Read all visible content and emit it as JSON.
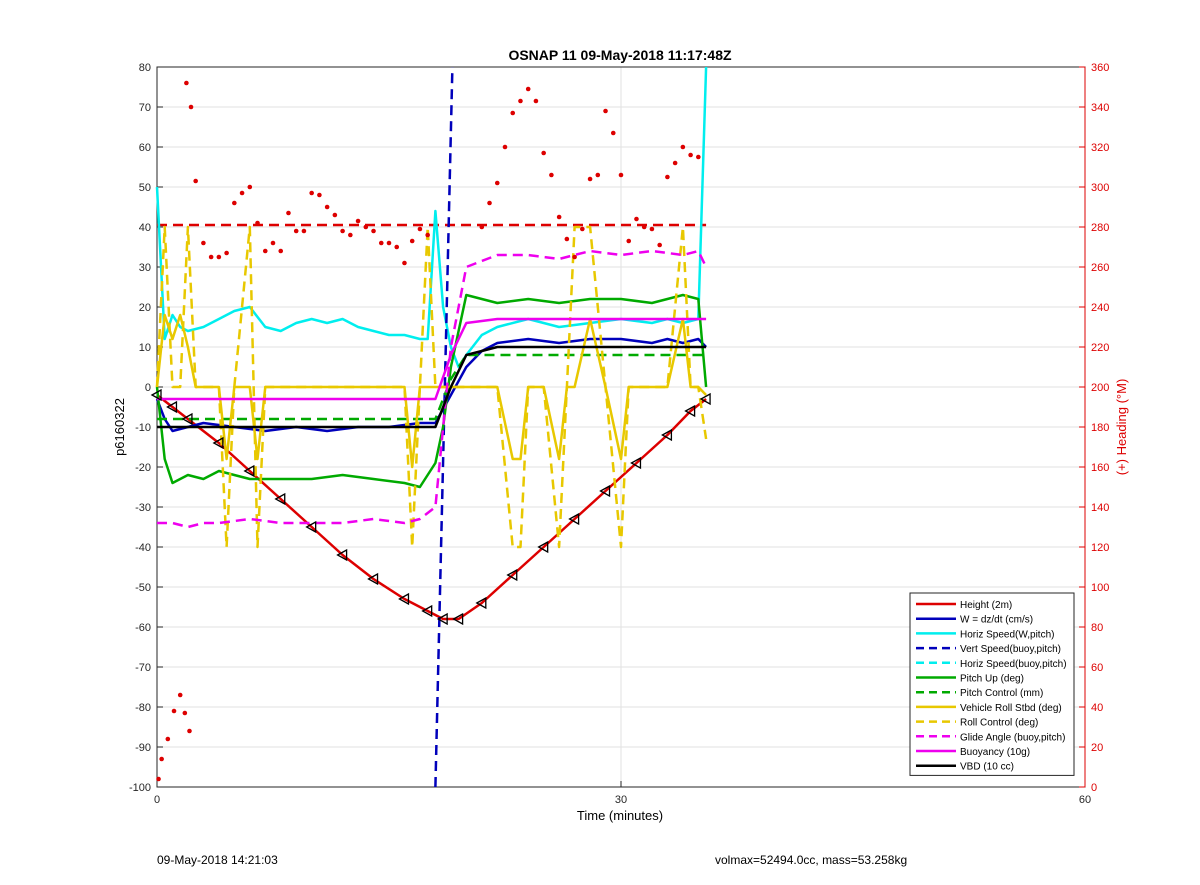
{
  "chart_data": {
    "type": "line",
    "title": "OSNAP 11 09-May-2018 11:17:48Z",
    "xlabel": "Time (minutes)",
    "ylabel": "p6160322",
    "y2label": "(+) Heading (°M)",
    "xlim": [
      0,
      60
    ],
    "ylim": [
      -100,
      80
    ],
    "y2lim": [
      0,
      360
    ],
    "xticks": [
      0,
      30,
      60
    ],
    "yticks": [
      -100,
      -90,
      -80,
      -70,
      -60,
      -50,
      -40,
      -30,
      -20,
      -10,
      0,
      10,
      20,
      30,
      40,
      50,
      60,
      70,
      80
    ],
    "y2ticks": [
      0,
      20,
      40,
      60,
      80,
      100,
      120,
      140,
      160,
      180,
      200,
      220,
      240,
      260,
      280,
      300,
      320,
      340,
      360
    ],
    "grid": true,
    "legend_position": "bottom-right",
    "colors": {
      "height": "#dd0000",
      "w": "#0000bb",
      "horiz": "#00eeee",
      "pitch": "#00aa00",
      "roll": "#e8c800",
      "glide": "#ee00ee",
      "buoyancy": "#ee00ee",
      "vbd": "#000000",
      "heading": "#dd0000"
    },
    "series": [
      {
        "name": "Height (2m)",
        "key": "height",
        "style": "solid",
        "x": [
          0,
          1,
          2,
          4,
          6,
          8,
          10,
          12,
          14,
          16,
          17.5,
          18.5,
          19.5,
          21,
          23,
          25,
          27,
          29,
          31,
          33,
          34.5,
          35.5
        ],
        "y": [
          -2,
          -5,
          -8,
          -14,
          -21,
          -28,
          -35,
          -42,
          -48,
          -53,
          -56,
          -58,
          -58,
          -54,
          -47,
          -40,
          -33,
          -26,
          -19,
          -12,
          -6,
          -3
        ]
      },
      {
        "name": "W = dz/dt (cm/s)",
        "key": "w",
        "style": "solid",
        "x": [
          0,
          0.5,
          1,
          2,
          3,
          5,
          7,
          9,
          11,
          13,
          15,
          17,
          18,
          19,
          20,
          21,
          22,
          24,
          26,
          28,
          30,
          32,
          33,
          34,
          35,
          35.5
        ],
        "y": [
          -3,
          -8,
          -11,
          -10,
          -9,
          -10,
          -11,
          -10,
          -11,
          -10,
          -10,
          -9,
          -9,
          -2,
          5,
          9,
          11,
          12,
          11,
          12,
          12,
          11,
          12,
          11,
          12,
          10
        ]
      },
      {
        "name": "Horiz Speed(W,pitch)",
        "key": "horiz",
        "style": "solid",
        "x": [
          0,
          0.5,
          1,
          1.5,
          2,
          3,
          4,
          5,
          6,
          7,
          8,
          9,
          10,
          11,
          12,
          13,
          14,
          15,
          16,
          17,
          17.5,
          18,
          18.5,
          19,
          19.5,
          20,
          21,
          22,
          24,
          26,
          28,
          30,
          32,
          33,
          34,
          35,
          35.5
        ],
        "y": [
          50,
          12,
          18,
          15,
          14,
          15,
          17,
          19,
          20,
          15,
          14,
          16,
          17,
          16,
          17,
          15,
          14,
          13,
          13,
          12,
          12,
          44,
          20,
          10,
          5,
          8,
          13,
          15,
          17,
          15,
          16,
          17,
          16,
          17,
          16,
          17,
          80
        ]
      },
      {
        "name": "Vert Speed(buoy,pitch)",
        "key": "w",
        "style": "dashed",
        "x": [
          18,
          19.1
        ],
        "y": [
          -100,
          80
        ]
      },
      {
        "name": "Horiz Speed(buoy,pitch)",
        "key": "horiz",
        "style": "dashed",
        "x": [],
        "y": []
      },
      {
        "name": "Pitch Up (deg)",
        "key": "pitch",
        "style": "solid",
        "x": [
          0,
          0.5,
          1,
          2,
          3,
          4,
          5,
          6,
          8,
          10,
          12,
          14,
          16,
          17,
          18,
          18.5,
          19,
          20,
          21,
          22,
          24,
          26,
          28,
          30,
          32,
          34,
          35,
          35.5
        ],
        "y": [
          0,
          -18,
          -24,
          -22,
          -23,
          -21,
          -22,
          -23,
          -23,
          -23,
          -22,
          -23,
          -24,
          -25,
          -19,
          -10,
          5,
          23,
          22,
          21,
          22,
          21,
          22,
          22,
          21,
          23,
          22,
          0
        ]
      },
      {
        "name": "Pitch Control (mm)",
        "key": "pitch",
        "style": "dashed",
        "x": [
          0,
          1,
          4,
          10,
          16,
          18,
          19,
          20,
          22,
          26,
          30,
          34,
          35.5
        ],
        "y": [
          -8,
          -8,
          -8,
          -8,
          -8,
          -8,
          2,
          8,
          8,
          8,
          8,
          8,
          8
        ]
      },
      {
        "name": "Vehicle Roll Stbd (deg)",
        "key": "roll",
        "style": "solid",
        "x": [
          0,
          0.5,
          1,
          1.5,
          2,
          2.5,
          3,
          4,
          4.5,
          5,
          6,
          6.5,
          7,
          8,
          10,
          12,
          14,
          16,
          16.5,
          17,
          17.5,
          18,
          19,
          20,
          22,
          23,
          23.5,
          24,
          25,
          26,
          26.5,
          27,
          28,
          29,
          30,
          30.5,
          31,
          32,
          33,
          34,
          34.5,
          35,
          35.5
        ],
        "y": [
          0,
          18,
          12,
          18,
          10,
          0,
          0,
          0,
          -18,
          0,
          0,
          -18,
          0,
          0,
          0,
          0,
          0,
          0,
          -20,
          0,
          0,
          0,
          0,
          0,
          0,
          -18,
          -18,
          0,
          0,
          -18,
          0,
          0,
          17,
          0,
          -18,
          0,
          0,
          0,
          0,
          17,
          0,
          0,
          -2
        ]
      },
      {
        "name": "Roll Control (deg)",
        "key": "roll",
        "style": "dashed",
        "x": [
          0,
          0.5,
          1,
          1.5,
          2,
          2.5,
          3,
          4,
          4.5,
          5,
          6,
          6.5,
          7,
          8,
          10,
          12,
          14,
          16,
          16.5,
          17,
          17.5,
          18,
          19,
          20,
          22,
          23,
          23.5,
          24,
          25,
          26,
          26.5,
          27,
          28,
          29,
          30,
          30.5,
          31,
          32,
          33,
          34,
          34.5,
          35,
          35.5
        ],
        "y": [
          0,
          40,
          0,
          0,
          40,
          0,
          0,
          0,
          -40,
          0,
          40,
          -40,
          0,
          0,
          0,
          0,
          0,
          0,
          -40,
          0,
          40,
          0,
          0,
          0,
          0,
          -40,
          -40,
          0,
          0,
          -40,
          0,
          40,
          40,
          0,
          -40,
          0,
          0,
          0,
          0,
          40,
          0,
          0,
          -13
        ]
      },
      {
        "name": "Glide Angle (buoy,pitch)",
        "key": "glide",
        "style": "dashed",
        "x": [
          0,
          1,
          2,
          3,
          4,
          6,
          8,
          10,
          12,
          14,
          16,
          17,
          18,
          19,
          20,
          22,
          24,
          26,
          28,
          30,
          32,
          34,
          35,
          35.5
        ],
        "y": [
          -34,
          -34,
          -35,
          -34,
          -34,
          -33,
          -34,
          -34,
          -34,
          -33,
          -34,
          -33,
          -30,
          10,
          30,
          33,
          33,
          32,
          34,
          33,
          34,
          33,
          34,
          30
        ]
      },
      {
        "name": "Buoyancy (10g)",
        "key": "buoyancy",
        "style": "solid",
        "x": [
          0,
          1,
          10,
          17,
          18,
          19,
          20,
          22,
          26,
          30,
          34,
          35.5
        ],
        "y": [
          -3,
          -3,
          -3,
          -3,
          -3,
          8,
          16,
          17,
          17,
          17,
          17,
          17
        ]
      },
      {
        "name": "VBD (10 cc)",
        "key": "vbd",
        "style": "solid",
        "x": [
          0,
          1,
          10,
          17,
          18,
          19,
          20,
          22,
          26,
          30,
          34,
          35.5
        ],
        "y": [
          -10,
          -10,
          -10,
          -10,
          -10,
          0,
          8,
          10,
          10,
          10,
          10,
          10
        ]
      }
    ],
    "heading_points": {
      "name": "Heading",
      "axis": "right",
      "x": [
        0.1,
        0.3,
        0.7,
        1.1,
        1.5,
        1.8,
        2.1,
        1.9,
        2.2,
        2.5,
        3,
        3.5,
        4,
        4.5,
        5,
        5.5,
        6,
        6.5,
        7,
        7.5,
        8,
        8.5,
        9,
        9.5,
        10,
        10.5,
        11,
        11.5,
        12,
        12.5,
        13,
        13.5,
        14,
        14.5,
        15,
        15.5,
        16,
        16.5,
        17,
        17.5,
        21,
        21.5,
        22,
        22.5,
        23,
        23.5,
        24,
        24.5,
        25,
        25.5,
        26,
        26.5,
        27,
        27.5,
        28,
        28.5,
        29,
        29.5,
        30,
        30.5,
        31,
        31.5,
        32,
        32.5,
        33,
        33.5,
        34,
        34.5,
        35
      ],
      "y": [
        4,
        14,
        24,
        38,
        46,
        37,
        28,
        352,
        340,
        303,
        272,
        265,
        265,
        267,
        292,
        297,
        300,
        282,
        268,
        272,
        268,
        287,
        278,
        278,
        297,
        296,
        290,
        286,
        278,
        276,
        283,
        280,
        278,
        272,
        272,
        270,
        262,
        273,
        279,
        276,
        280,
        292,
        302,
        320,
        337,
        343,
        349,
        343,
        317,
        306,
        285,
        274,
        265,
        279,
        304,
        306,
        338,
        327,
        306,
        273,
        284,
        280,
        279,
        271,
        305,
        312,
        320,
        316,
        315
      ]
    },
    "threshold_line": {
      "axis": "right",
      "value": 281,
      "style": "dashed",
      "color": "#dd0000",
      "x": [
        0,
        35.5
      ]
    },
    "legend_entries": [
      {
        "label": "Height (2m)",
        "key": "height",
        "style": "solid"
      },
      {
        "label": "W = dz/dt (cm/s)",
        "key": "w",
        "style": "solid"
      },
      {
        "label": "Horiz Speed(W,pitch)",
        "key": "horiz",
        "style": "solid"
      },
      {
        "label": "Vert Speed(buoy,pitch)",
        "key": "w",
        "style": "dashed"
      },
      {
        "label": "Horiz Speed(buoy,pitch)",
        "key": "horiz",
        "style": "dashed"
      },
      {
        "label": "Pitch Up (deg)",
        "key": "pitch",
        "style": "solid"
      },
      {
        "label": "Pitch Control (mm)",
        "key": "pitch",
        "style": "dashed"
      },
      {
        "label": "Vehicle Roll Stbd (deg)",
        "key": "roll",
        "style": "solid"
      },
      {
        "label": "Roll Control (deg)",
        "key": "roll",
        "style": "dashed"
      },
      {
        "label": "Glide Angle (buoy,pitch)",
        "key": "glide",
        "style": "dashed"
      },
      {
        "label": "Buoyancy (10g)",
        "key": "buoyancy",
        "style": "solid"
      },
      {
        "label": "VBD (10 cc)",
        "key": "vbd",
        "style": "solid"
      }
    ]
  },
  "footer": {
    "timestamp": "09-May-2018 14:21:03",
    "volmax": "volmax=52494.0cc, mass=53.258kg"
  }
}
